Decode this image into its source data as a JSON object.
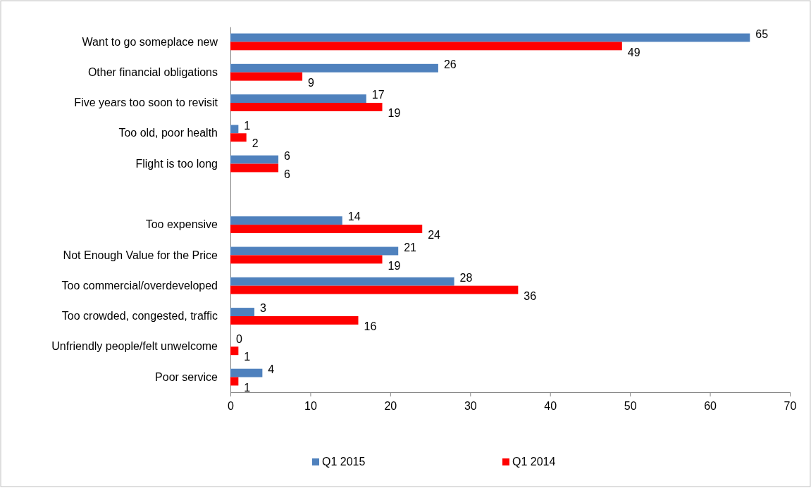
{
  "chart_data": {
    "type": "bar",
    "orientation": "horizontal",
    "categories": [
      "Want to go someplace new",
      "Other financial obligations",
      "Five years too soon to revisit",
      "Too old, poor health",
      "Flight is too long",
      null,
      "Too expensive",
      "Not Enough Value for the Price",
      "Too commercial/overdeveloped",
      "Too crowded, congested, traffic",
      "Unfriendly people/felt unwelcome",
      "Poor service"
    ],
    "series": [
      {
        "name": "Q1 2015",
        "color": "#4f81bd",
        "values": [
          65,
          26,
          17,
          1,
          6,
          null,
          14,
          21,
          28,
          3,
          0,
          4
        ]
      },
      {
        "name": "Q1 2014",
        "color": "#ff0000",
        "values": [
          49,
          9,
          19,
          2,
          6,
          null,
          24,
          19,
          36,
          16,
          1,
          1
        ]
      }
    ],
    "xlim": [
      0,
      70
    ],
    "xticks": [
      0,
      10,
      20,
      30,
      40,
      50,
      60,
      70
    ],
    "grid": false,
    "legend": "bottom",
    "data_labels": true
  }
}
